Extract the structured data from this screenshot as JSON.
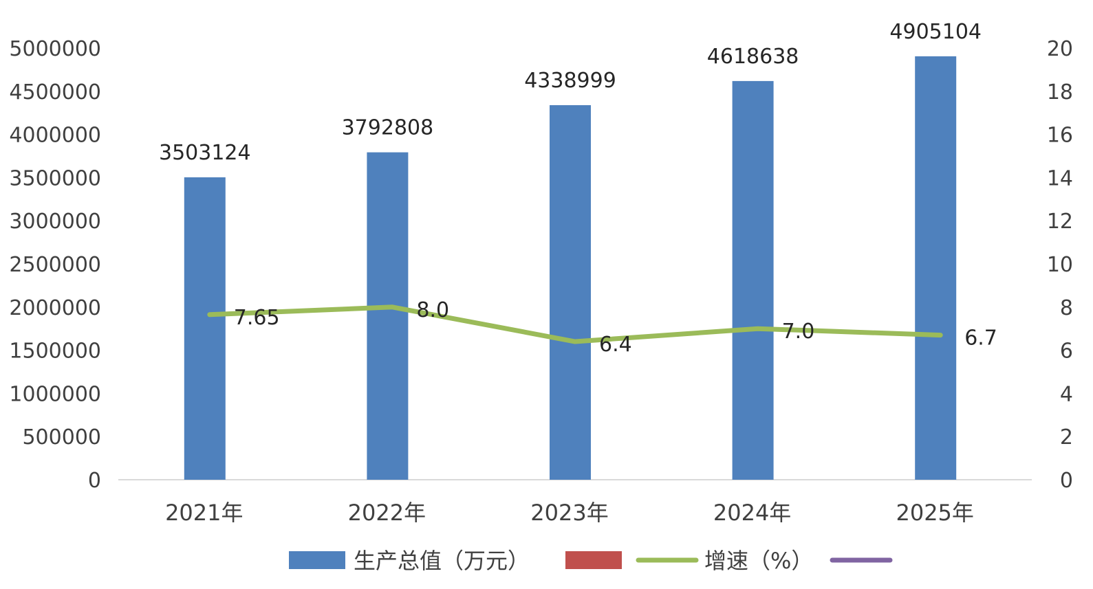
{
  "chart_data": {
    "type": "bar",
    "categories": [
      "2021年",
      "2022年",
      "2023年",
      "2024年",
      "2025年"
    ],
    "series": [
      {
        "name": "生产总值（万元）",
        "type": "bar",
        "axis": "left",
        "color": "#4f81bd",
        "values": [
          3503124,
          3792808,
          4338999,
          4618638,
          4905104
        ],
        "labels": [
          "3503124",
          "3792808",
          "4338999",
          "4618638",
          "4905104"
        ]
      },
      {
        "name": "增速（%）",
        "type": "line",
        "axis": "right",
        "color": "#9bbb59",
        "values": [
          7.65,
          8.0,
          6.4,
          7.0,
          6.7
        ],
        "labels": [
          "7.65",
          "8.0",
          "6.4",
          "7.0",
          "6.7"
        ]
      }
    ],
    "legend_extra": [
      {
        "type": "bar",
        "color": "#c0504d"
      },
      {
        "type": "line",
        "color": "#8064a2"
      }
    ],
    "y_left": {
      "lim": [
        0,
        5000000
      ],
      "ticks": [
        "0",
        "500000",
        "1000000",
        "1500000",
        "2000000",
        "2500000",
        "3000000",
        "3500000",
        "4000000",
        "4500000",
        "5000000"
      ]
    },
    "y_right": {
      "lim": [
        0,
        20
      ],
      "ticks": [
        "0",
        "2",
        "4",
        "6",
        "8",
        "10",
        "12",
        "14",
        "16",
        "18",
        "20"
      ]
    },
    "grid": false,
    "legend_position": "bottom"
  }
}
